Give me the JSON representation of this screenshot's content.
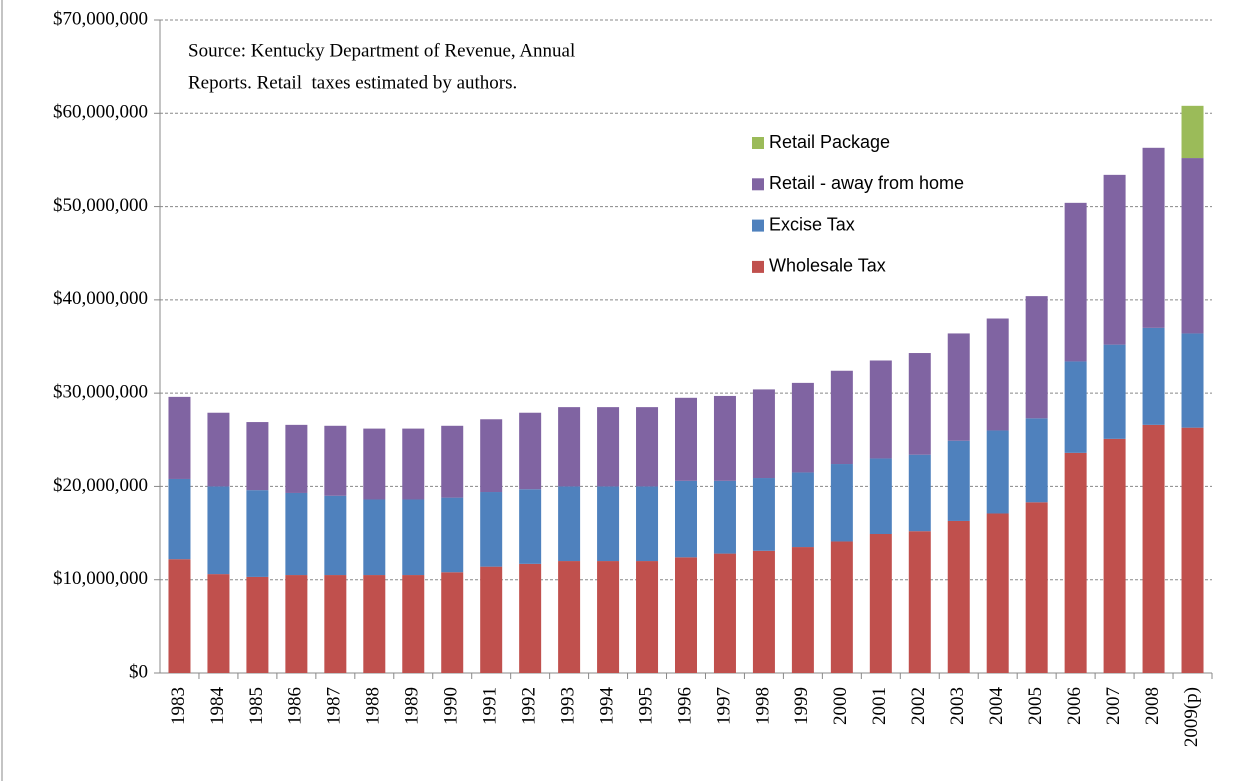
{
  "chart_data": {
    "type": "bar",
    "stacked": true,
    "annotation": [
      "Source: Kentucky Department of Revenue, Annual",
      "Reports. Retail  taxes estimated by authors."
    ],
    "categories": [
      "1983",
      "1984",
      "1985",
      "1986",
      "1987",
      "1988",
      "1989",
      "1990",
      "1991",
      "1992",
      "1993",
      "1994",
      "1995",
      "1996",
      "1997",
      "1998",
      "1999",
      "2000",
      "2001",
      "2002",
      "2003",
      "2004",
      "2005",
      "2006",
      "2007",
      "2008",
      "2009(p)"
    ],
    "series": [
      {
        "name": "Wholesale Tax",
        "color": "#c0504d",
        "values": [
          12200000,
          10600000,
          10300000,
          10500000,
          10500000,
          10500000,
          10500000,
          10800000,
          11400000,
          11700000,
          12000000,
          12000000,
          12000000,
          12400000,
          12800000,
          13100000,
          13500000,
          14100000,
          14900000,
          15200000,
          16300000,
          17100000,
          18300000,
          23600000,
          25100000,
          26600000,
          26300000
        ]
      },
      {
        "name": "Excise Tax",
        "color": "#4f81bd",
        "values": [
          8600000,
          9400000,
          9300000,
          8800000,
          8500000,
          8100000,
          8100000,
          8000000,
          8000000,
          8000000,
          8000000,
          8000000,
          8000000,
          8200000,
          7800000,
          7800000,
          8000000,
          8300000,
          8100000,
          8200000,
          8600000,
          8900000,
          9000000,
          9800000,
          10100000,
          10400000,
          10100000
        ]
      },
      {
        "name": "Retail - away from home",
        "color": "#8064a2",
        "values": [
          8800000,
          7900000,
          7300000,
          7300000,
          7500000,
          7600000,
          7600000,
          7700000,
          7800000,
          8200000,
          8500000,
          8500000,
          8500000,
          8900000,
          9100000,
          9500000,
          9600000,
          10000000,
          10500000,
          10900000,
          11500000,
          12000000,
          13100000,
          17000000,
          18200000,
          19300000,
          18800000
        ]
      },
      {
        "name": "Retail Package",
        "color": "#9bbb59",
        "values": [
          0,
          0,
          0,
          0,
          0,
          0,
          0,
          0,
          0,
          0,
          0,
          0,
          0,
          0,
          0,
          0,
          0,
          0,
          0,
          0,
          0,
          0,
          0,
          0,
          0,
          0,
          5600000
        ]
      }
    ],
    "ylim": [
      0,
      70000000
    ],
    "yticks": [
      {
        "value": 0,
        "label": "$0"
      },
      {
        "value": 10000000,
        "label": "$10,000,000"
      },
      {
        "value": 20000000,
        "label": "$20,000,000"
      },
      {
        "value": 30000000,
        "label": "$30,000,000"
      },
      {
        "value": 40000000,
        "label": "$40,000,000"
      },
      {
        "value": 50000000,
        "label": "$50,000,000"
      },
      {
        "value": 60000000,
        "label": "$60,000,000"
      },
      {
        "value": 70000000,
        "label": "$70,000,000"
      }
    ],
    "grid": true,
    "legend": "top-right"
  }
}
